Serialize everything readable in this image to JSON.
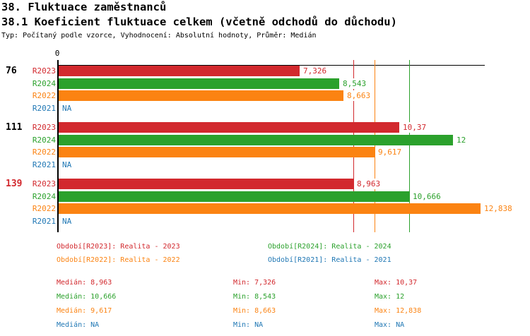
{
  "header": {
    "title": "38. Fluktuace zaměstnanců",
    "subtitle": "38.1 Koeficient fluktuace celkem (včetně odchodů do důchodu)",
    "meta": "Typ: Počítaný podle vzorce, Vyhodnocení: Absolutní hodnoty, Průměr: Medián"
  },
  "colors": {
    "R2023": "#d2292e",
    "R2024": "#2ba12c",
    "R2022": "#fb8312",
    "R2021": "#1f77b4",
    "axis": "#000000",
    "background": "#ffffff"
  },
  "chart_data": {
    "type": "bar",
    "orientation": "horizontal",
    "origin_label": "0",
    "value_axis": {
      "min": 0,
      "max_visible": 13,
      "grid": false
    },
    "series_order": [
      "R2023",
      "R2024",
      "R2022",
      "R2021"
    ],
    "groups": [
      {
        "label": "76",
        "label_color": "#000000",
        "bars": [
          {
            "series": "R2023",
            "value": 7.326,
            "display": "7,326"
          },
          {
            "series": "R2024",
            "value": 8.543,
            "display": "8,543"
          },
          {
            "series": "R2022",
            "value": 8.663,
            "display": "8,663"
          },
          {
            "series": "R2021",
            "value": null,
            "display": "NA"
          }
        ]
      },
      {
        "label": "111",
        "label_color": "#000000",
        "bars": [
          {
            "series": "R2023",
            "value": 10.37,
            "display": "10,37"
          },
          {
            "series": "R2024",
            "value": 12,
            "display": "12"
          },
          {
            "series": "R2022",
            "value": 9.617,
            "display": "9,617"
          },
          {
            "series": "R2021",
            "value": null,
            "display": "NA"
          }
        ]
      },
      {
        "label": "139",
        "label_color": "#d2292e",
        "bars": [
          {
            "series": "R2023",
            "value": 8.963,
            "display": "8,963"
          },
          {
            "series": "R2024",
            "value": 10.666,
            "display": "10,666"
          },
          {
            "series": "R2022",
            "value": 12.838,
            "display": "12,838"
          },
          {
            "series": "R2021",
            "value": null,
            "display": "NA"
          }
        ]
      }
    ],
    "reference_lines": [
      {
        "series": "R2023",
        "value": 8.963
      },
      {
        "series": "R2022",
        "value": 9.617
      },
      {
        "series": "R2024",
        "value": 10.666
      }
    ]
  },
  "legend": {
    "items": [
      {
        "series": "R2023",
        "label": "Období[R2023]: Realita - 2023"
      },
      {
        "series": "R2024",
        "label": "Období[R2024]: Realita - 2024"
      },
      {
        "series": "R2022",
        "label": "Období[R2022]: Realita - 2022"
      },
      {
        "series": "R2021",
        "label": "Období[R2021]: Realita - 2021"
      }
    ]
  },
  "stats": {
    "labels": {
      "median": "Medián:",
      "min": "Min:",
      "max": "Max:"
    },
    "rows": [
      {
        "series": "R2023",
        "median": "8,963",
        "min": "7,326",
        "max": "10,37"
      },
      {
        "series": "R2024",
        "median": "10,666",
        "min": "8,543",
        "max": "12"
      },
      {
        "series": "R2022",
        "median": "9,617",
        "min": "8,663",
        "max": "12,838"
      },
      {
        "series": "R2021",
        "median": "NA",
        "min": "NA",
        "max": "NA"
      }
    ]
  }
}
